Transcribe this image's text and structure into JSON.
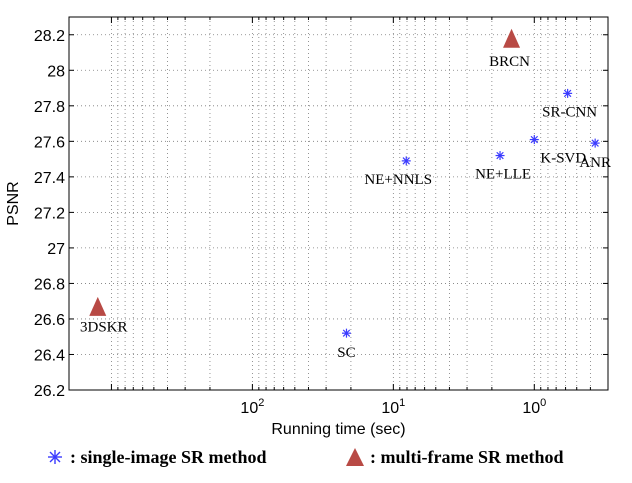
{
  "chart_data": {
    "type": "scatter",
    "xlabel": "Running time (sec)",
    "ylabel": "PSNR",
    "x_scale": "log",
    "x_reversed": true,
    "xlim": [
      2000,
      0.3
    ],
    "ylim": [
      26.2,
      28.3
    ],
    "grid": true,
    "x_ticks": [
      {
        "value": 100,
        "base": "10",
        "exp": "2"
      },
      {
        "value": 10,
        "base": "10",
        "exp": "1"
      },
      {
        "value": 1,
        "base": "10",
        "exp": "0"
      }
    ],
    "y_ticks": [
      "26.2",
      "26.4",
      "26.6",
      "26.8",
      "27",
      "27.2",
      "27.4",
      "27.6",
      "27.8",
      "28",
      "28.2"
    ],
    "series": [
      {
        "name": "single-image SR method",
        "marker": "asterisk",
        "color": "#3a3aff",
        "points": [
          {
            "label": "SC",
            "x": 21.5,
            "y": 26.52
          },
          {
            "label": "NE+NNLS",
            "x": 8.1,
            "y": 27.49
          },
          {
            "label": "NE+LLE",
            "x": 1.75,
            "y": 27.52
          },
          {
            "label": "K-SVD",
            "x": 1.0,
            "y": 27.61
          },
          {
            "label": "SR-CNN",
            "x": 0.58,
            "y": 27.87
          },
          {
            "label": "ANR",
            "x": 0.37,
            "y": 27.59
          }
        ]
      },
      {
        "name": "multi-frame SR method",
        "marker": "triangle",
        "color": "#b84a45",
        "points": [
          {
            "label": "3DSKR",
            "x": 1250,
            "y": 26.66
          },
          {
            "label": "BRCN",
            "x": 1.45,
            "y": 28.17
          }
        ]
      }
    ]
  },
  "legend": {
    "single_label": ": single-image SR method",
    "multi_label": ": multi-frame SR method"
  }
}
